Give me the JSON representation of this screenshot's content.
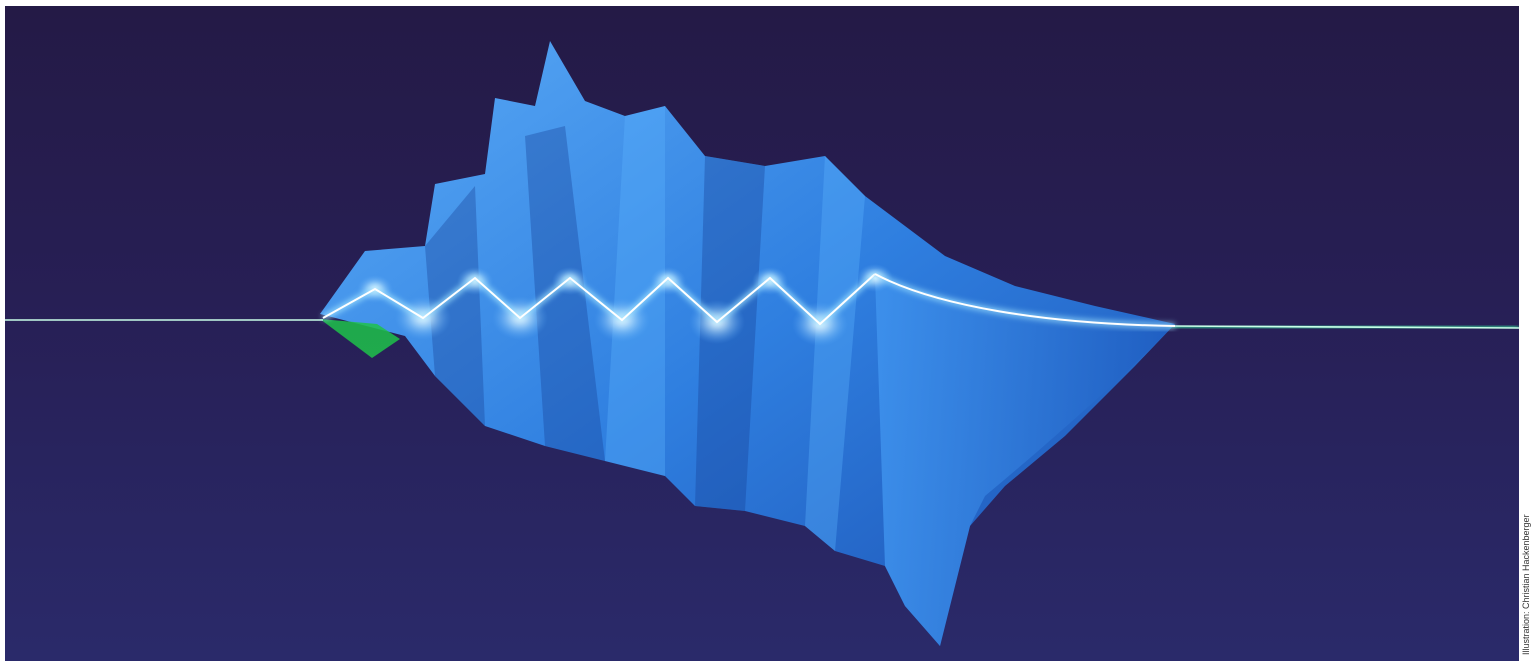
{
  "image": {
    "subject": "Glowing laser pulse beam over a folded blue wave-shaped surface",
    "colors": {
      "background_top": "#241a46",
      "background_bottom": "#2a2a6a",
      "surface_light": "#4a9cf2",
      "surface_mid": "#2f7fe0",
      "surface_dark": "#1b4fb0",
      "beam_green": "#35f0a0",
      "beam_core": "#ffffff",
      "accent_green": "#1fc24a"
    }
  },
  "credit": {
    "text": "Illustration: Christian Hackenberger"
  }
}
